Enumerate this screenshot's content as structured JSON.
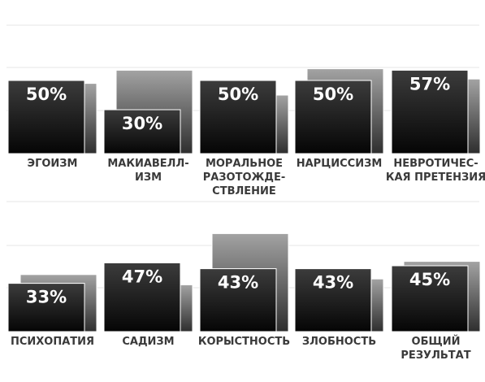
{
  "chart_data": [
    {
      "type": "bar",
      "categories": [
        [
          "ЭГОИЗМ"
        ],
        [
          "МАКИАВЕЛЛ-",
          "ИЗМ"
        ],
        [
          "МОРАЛЬНОЕ",
          "РАЗОТОЖДЕ-",
          "СТВЛЕНИЕ"
        ],
        [
          "НАРЦИССИЗМ"
        ],
        [
          "НЕВРОТИЧЕС-",
          "КАЯ ПРЕТЕНЗИЯ"
        ]
      ],
      "series": [
        {
          "values": [
            50,
            30,
            50,
            50,
            57
          ],
          "labels": [
            "50%",
            "30%",
            "50%",
            "50%",
            "57%"
          ],
          "color": "#1e1e1e"
        },
        {
          "values": [
            48,
            57,
            40,
            58,
            51
          ],
          "color": "#8a8a8a"
        }
      ],
      "ylim": [
        0,
        100
      ],
      "grid": true,
      "legend": "none"
    },
    {
      "type": "bar",
      "categories": [
        [
          "ПСИХОПАТИЯ"
        ],
        [
          "САДИЗМ"
        ],
        [
          "КОРЫСТНОСТЬ"
        ],
        [
          "ЗЛОБНОСТЬ"
        ],
        [
          "ОБЩИЙ",
          "РЕЗУЛЬТАТ"
        ]
      ],
      "series": [
        {
          "values": [
            33,
            47,
            43,
            43,
            45
          ],
          "labels": [
            "33%",
            "47%",
            "43%",
            "43%",
            "45%"
          ],
          "color": "#1e1e1e"
        },
        {
          "values": [
            39,
            32,
            67,
            36,
            48
          ],
          "color": "#8a8a8a"
        }
      ],
      "ylim": [
        0,
        100
      ],
      "grid": true,
      "legend": "none"
    }
  ]
}
